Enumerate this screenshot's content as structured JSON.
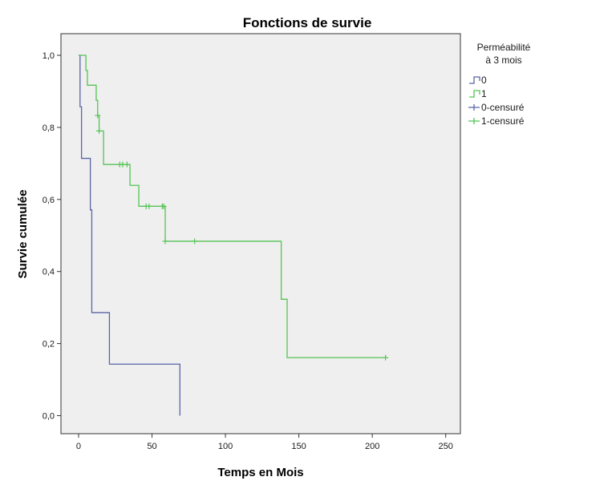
{
  "chart_data": {
    "type": "line",
    "title": "Fonctions de survie",
    "xlabel": "Temps en Mois",
    "ylabel": "Survie cumulée",
    "xlim": [
      -12,
      260
    ],
    "ylim": [
      -0.05,
      1.06
    ],
    "xticks": [
      0,
      50,
      100,
      150,
      200,
      250
    ],
    "xtick_labels": [
      "0",
      "50",
      "100",
      "150",
      "200",
      "250"
    ],
    "yticks": [
      0,
      0.2,
      0.4,
      0.6,
      0.8,
      1.0
    ],
    "ytick_labels": [
      "0,0",
      "0,2",
      "0,4",
      "0,6",
      "0,8",
      "1,0"
    ],
    "grid": false,
    "background": "#efefef",
    "legend": {
      "title_lines": [
        "Perméabilité",
        "à 3 mois"
      ],
      "position": "right",
      "entries": [
        {
          "label": "0",
          "kind": "step",
          "color": "#5a64a8"
        },
        {
          "label": "1",
          "kind": "step",
          "color": "#55c455"
        },
        {
          "label": "0-censuré",
          "kind": "censor",
          "color": "#5a64a8"
        },
        {
          "label": "1-censuré",
          "kind": "censor",
          "color": "#55c455"
        }
      ]
    },
    "series": [
      {
        "name": "0",
        "color": "#5a64a8",
        "steps": [
          [
            0,
            1.0
          ],
          [
            1,
            0.857
          ],
          [
            2,
            0.714
          ],
          [
            8,
            0.571
          ],
          [
            9,
            0.286
          ],
          [
            21,
            0.143
          ],
          [
            69,
            0.0
          ]
        ],
        "end_x": 69,
        "censored": []
      },
      {
        "name": "1",
        "color": "#55c455",
        "steps": [
          [
            0,
            1.0
          ],
          [
            5,
            0.958
          ],
          [
            6,
            0.917
          ],
          [
            12,
            0.875
          ],
          [
            13,
            0.833
          ],
          [
            14,
            0.79
          ],
          [
            17,
            0.697
          ],
          [
            35,
            0.639
          ],
          [
            41,
            0.581
          ],
          [
            59,
            0.484
          ],
          [
            138,
            0.323
          ],
          [
            142,
            0.161
          ]
        ],
        "end_x": 209,
        "censored": [
          [
            13,
            0.833
          ],
          [
            14,
            0.79
          ],
          [
            28,
            0.697
          ],
          [
            30,
            0.697
          ],
          [
            33,
            0.697
          ],
          [
            46,
            0.581
          ],
          [
            48,
            0.581
          ],
          [
            57,
            0.581
          ],
          [
            58,
            0.581
          ],
          [
            59,
            0.484
          ],
          [
            79,
            0.484
          ],
          [
            209,
            0.161
          ]
        ]
      }
    ]
  }
}
